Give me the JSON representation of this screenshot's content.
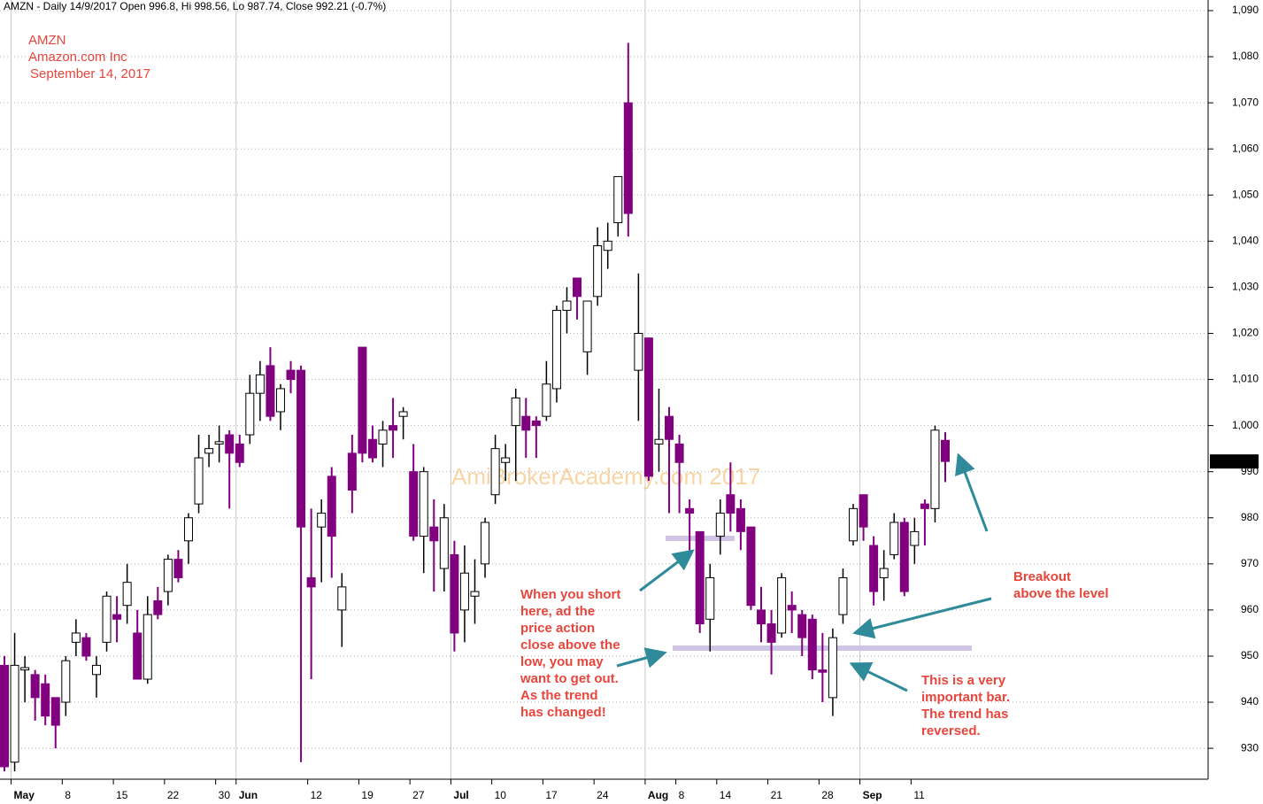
{
  "chart_data": {
    "type": "candlestick",
    "title": "AMZN - Daily 14/9/2017 Open 996.8, Hi 998.56, Lo 987.74, Close 992.21 (-0.7%)",
    "header_lines": [
      "AMZN",
      "Amazon.com Inc",
      "September 14, 2017"
    ],
    "watermark": "AmiBrokerAcademy.com  2017",
    "last_price_label": "992.21",
    "annotations": [
      [
        "When you short",
        "here, ad the",
        "price action",
        "close above the",
        "low, you may",
        "want to get out.",
        "As the trend",
        "has changed!"
      ],
      [
        "Breakout",
        "above the level"
      ],
      [
        "This is a very",
        "important bar.",
        "The trend has",
        "reversed."
      ]
    ],
    "categories": [
      null,
      "May",
      null,
      null,
      null,
      null,
      "8",
      null,
      null,
      null,
      null,
      "15",
      null,
      null,
      null,
      null,
      "22",
      null,
      null,
      null,
      null,
      "30",
      null,
      "Jun",
      null,
      null,
      null,
      null,
      null,
      null,
      "12",
      null,
      null,
      null,
      null,
      "19",
      null,
      null,
      null,
      null,
      "27",
      null,
      null,
      null,
      "Jul",
      null,
      null,
      null,
      "10",
      null,
      null,
      null,
      null,
      "17",
      null,
      null,
      null,
      null,
      "24",
      null,
      null,
      null,
      null,
      "Aug",
      null,
      null,
      "8",
      null,
      null,
      null,
      "14",
      null,
      null,
      null,
      null,
      "21",
      null,
      null,
      null,
      null,
      "28",
      null,
      null,
      null,
      "Sep",
      null,
      null,
      null,
      null,
      "11",
      null,
      null,
      null
    ],
    "up_color": "#ffffff",
    "down_color": "#800080",
    "open": [
      948,
      927,
      947,
      946,
      944,
      941,
      940,
      953,
      954,
      946,
      953,
      959,
      961,
      955,
      945,
      962,
      964,
      971,
      975,
      983,
      994,
      996,
      998,
      996,
      998,
      1007,
      1013,
      1003,
      1012,
      1012,
      967,
      978,
      989,
      960,
      994,
      1017,
      997,
      996,
      1000,
      1002,
      990,
      976,
      978,
      969,
      972,
      960,
      963,
      970,
      985,
      992,
      1000,
      1002,
      1001,
      1002,
      1008,
      1025,
      1032,
      1016,
      1028,
      1038,
      1044,
      1070,
      1012,
      1019,
      996,
      1002,
      996,
      982,
      977,
      958,
      976,
      985,
      982,
      978,
      960,
      957,
      955,
      961,
      959,
      958,
      947,
      941,
      959,
      975,
      985,
      974,
      967,
      972,
      979,
      974,
      983,
      982,
      996.8
    ],
    "high": [
      950,
      955,
      950,
      947,
      946,
      941,
      950,
      958,
      955,
      950,
      964,
      963,
      970,
      960,
      963,
      965,
      972,
      973,
      981,
      998,
      998,
      1000,
      999,
      998,
      1011,
      1014,
      1017,
      1009,
      1014,
      1013,
      982,
      984,
      991,
      968,
      998,
      1017,
      1000,
      1001,
      1006,
      1004,
      996,
      991,
      984,
      983,
      975,
      974,
      971,
      980,
      998,
      996,
      1008,
      1006,
      1002,
      1014,
      1026,
      1030,
      1032,
      1027,
      1043,
      1044,
      1054,
      1083,
      1033,
      1019,
      1008,
      1004,
      998,
      984,
      977,
      970,
      984,
      992,
      984,
      978,
      965,
      960,
      968,
      964,
      960,
      959,
      955,
      956,
      969,
      983,
      985,
      976,
      973,
      981,
      980,
      980,
      984,
      1000,
      998.56
    ],
    "low": [
      925,
      925,
      940,
      936,
      935,
      930,
      937,
      950,
      949,
      941,
      951,
      953,
      957,
      945,
      944,
      958,
      961,
      966,
      970,
      981,
      991,
      992,
      982,
      991,
      996,
      1001,
      1001,
      999,
      1007,
      927,
      945,
      966,
      967,
      952,
      981,
      992,
      992,
      991,
      993,
      997,
      975,
      968,
      964,
      964,
      951,
      953,
      957,
      967,
      983,
      988,
      988,
      993,
      993,
      1001,
      1005,
      1020,
      1023,
      1011,
      1026,
      1034,
      1041,
      1041,
      1001,
      988,
      990,
      981,
      981,
      972,
      955,
      951,
      972,
      977,
      973,
      960,
      953,
      946,
      954,
      955,
      950,
      945,
      940,
      937,
      957,
      974,
      975,
      961,
      962,
      971,
      963,
      970,
      974,
      979,
      987.74
    ],
    "close": [
      926,
      948,
      947.5,
      941,
      937,
      935,
      949,
      955,
      950,
      948,
      963,
      958,
      966,
      945,
      959,
      959,
      971,
      967,
      980,
      993,
      995,
      996.5,
      994,
      992,
      1007,
      1011,
      1002,
      1008,
      1010,
      978,
      965,
      981,
      976,
      965,
      986,
      994,
      993,
      999,
      999,
      1003,
      976,
      990,
      975,
      980,
      955,
      968,
      964,
      979,
      995,
      993,
      1006,
      999,
      1000,
      1009,
      1025,
      1027,
      1028,
      1027,
      1039,
      1040,
      1054,
      1046,
      1020,
      989,
      997,
      997,
      992,
      981,
      957,
      967,
      981,
      981,
      977,
      961,
      957,
      953,
      967,
      960,
      954,
      947,
      946.5,
      954,
      967,
      982,
      978,
      964,
      969,
      979,
      964,
      977,
      982,
      999,
      992.21
    ],
    "ylim": [
      923.3,
      1092.3
    ],
    "yticks": [
      930,
      940,
      950,
      960,
      970,
      980,
      990,
      {
        "value": 1000,
        "label": "1,000"
      },
      {
        "value": 1010,
        "label": "1,010"
      },
      {
        "value": 1020,
        "label": "1,020"
      },
      {
        "value": 1030,
        "label": "1,030"
      },
      {
        "value": 1040,
        "label": "1,040"
      },
      {
        "value": 1050,
        "label": "1,050"
      },
      {
        "value": 1060,
        "label": "1,060"
      },
      {
        "value": 1070,
        "label": "1,070"
      },
      {
        "value": 1080,
        "label": "1,080"
      },
      {
        "value": 1090,
        "label": "1,090"
      }
    ],
    "grid": true
  }
}
